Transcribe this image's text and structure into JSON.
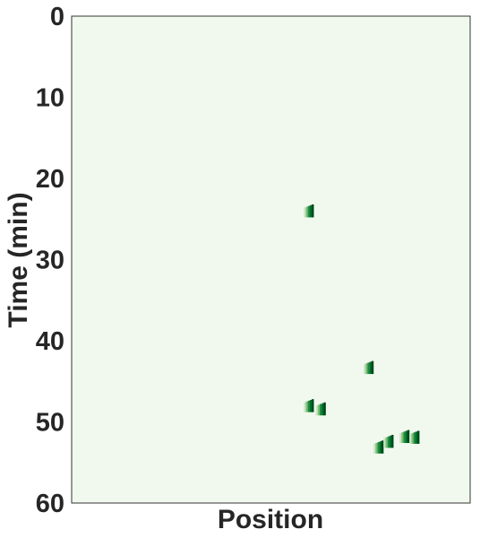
{
  "chart_data": {
    "type": "heatmap",
    "title": "",
    "xlabel": "Position",
    "ylabel": "Time (min)",
    "ylim": [
      0,
      60
    ],
    "y_inverted": true,
    "y_ticks": [
      0,
      10,
      20,
      30,
      40,
      50,
      60
    ],
    "x_ticks": [],
    "grid": false,
    "colormap": "Greens",
    "background_color": "#f1f9ee",
    "cell_colors": [
      "#c7e9c0",
      "#74c476",
      "#238b45",
      "#006d2c",
      "#00441b"
    ],
    "events": [
      {
        "position": 0.595,
        "time_start": 23.2,
        "time_end": 24.8
      },
      {
        "position": 0.745,
        "time_start": 42.5,
        "time_end": 44.1
      },
      {
        "position": 0.595,
        "time_start": 47.2,
        "time_end": 48.8
      },
      {
        "position": 0.625,
        "time_start": 47.6,
        "time_end": 49.2
      },
      {
        "position": 0.77,
        "time_start": 52.3,
        "time_end": 53.9
      },
      {
        "position": 0.795,
        "time_start": 51.6,
        "time_end": 53.2
      },
      {
        "position": 0.835,
        "time_start": 51.0,
        "time_end": 52.6
      },
      {
        "position": 0.86,
        "time_start": 51.1,
        "time_end": 52.7
      }
    ]
  }
}
